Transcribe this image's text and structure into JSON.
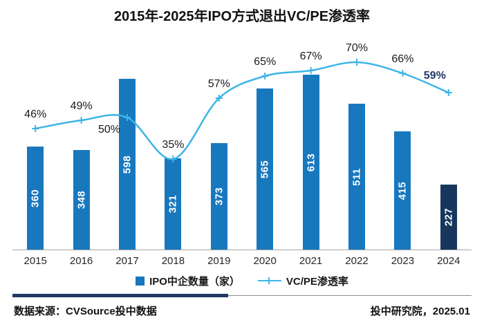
{
  "title": "2015年-2025年IPO方式退出VC/PE渗透率",
  "chart_data": {
    "type": "bar",
    "categories": [
      "2015",
      "2016",
      "2017",
      "2018",
      "2019",
      "2020",
      "2021",
      "2022",
      "2023",
      "2024"
    ],
    "series": [
      {
        "name": "IPO中企数量（家）",
        "type": "bar",
        "values": [
          360,
          348,
          598,
          321,
          373,
          565,
          613,
          511,
          415,
          227
        ]
      },
      {
        "name": "VC/PE渗透率",
        "type": "line",
        "unit": "%",
        "values": [
          46,
          49,
          50,
          35,
          57,
          65,
          67,
          70,
          66,
          59
        ]
      }
    ],
    "pct_labels": [
      "46%",
      "49%",
      "50%",
      "35%",
      "57%",
      "65%",
      "67%",
      "70%",
      "66%",
      "59%"
    ],
    "pct_label_placement": [
      "above",
      "above",
      "below-left",
      "above",
      "above",
      "above",
      "above",
      "above",
      "above",
      "above-left-bold"
    ],
    "colors": {
      "bar": "#1878be",
      "bar_last": "#16365d",
      "line": "#3cb4e7",
      "pct_label": "#1a1a1a",
      "pct_label_last": "#1f3864",
      "divider_accent": "#1f3864"
    },
    "ylim_bars": [
      0,
      650
    ],
    "ylim_line": [
      0,
      100
    ],
    "grid": false,
    "legend_position": "bottom"
  },
  "legend": {
    "items": [
      {
        "label": "IPO中企数量（家）",
        "marker": "bar-square"
      },
      {
        "label": "VC/PE渗透率",
        "marker": "line-plus"
      }
    ]
  },
  "footer": {
    "source": "数据来源：CVSource投中数据",
    "publisher": "投中研究院，2025.01"
  }
}
